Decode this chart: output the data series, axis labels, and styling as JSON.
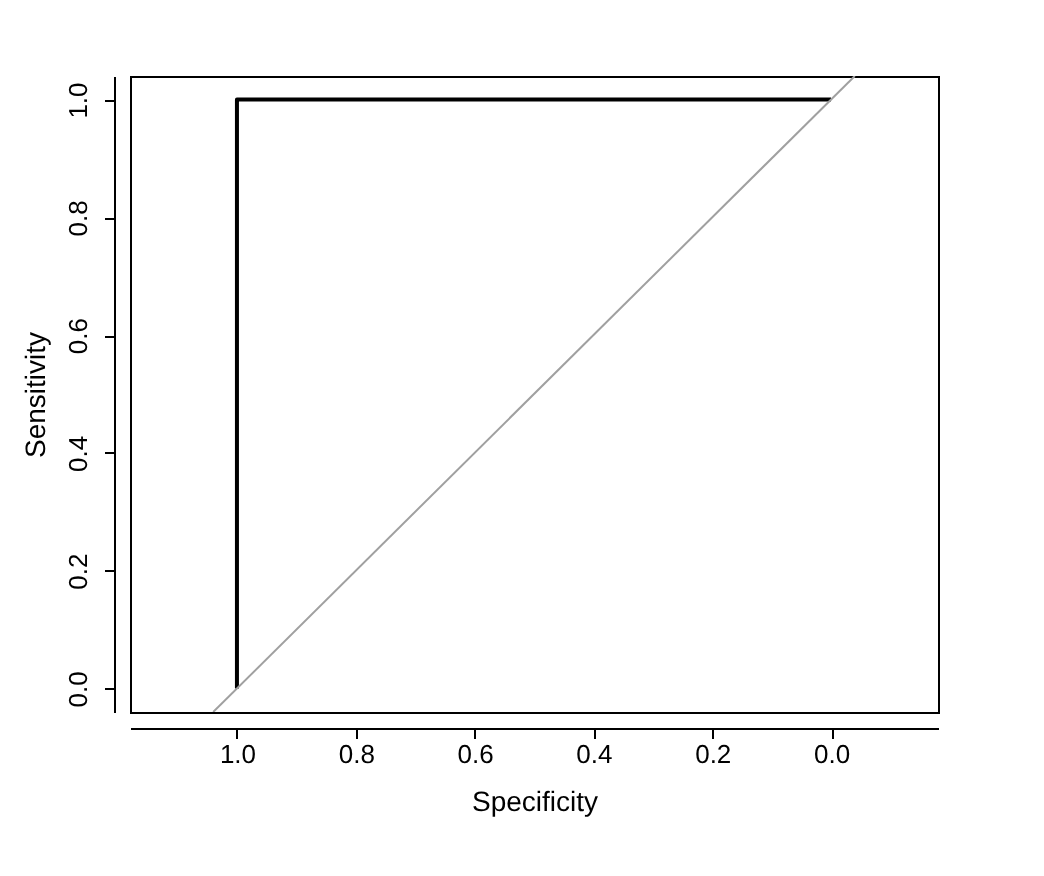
{
  "chart_data": {
    "type": "line",
    "xlabel": "Specificity",
    "ylabel": "Sensitivity",
    "xlim": [
      1.18,
      -0.18
    ],
    "ylim": [
      -0.04,
      1.04
    ],
    "xticks": [
      {
        "value": 1,
        "label": "1.0"
      },
      0.8,
      0.6,
      0.4,
      0.2,
      {
        "value": 0,
        "label": "0.0"
      }
    ],
    "yticks": [
      {
        "value": 0,
        "label": "0.0"
      },
      0.2,
      0.4,
      0.6,
      0.8,
      {
        "value": 1,
        "label": "1.0"
      }
    ],
    "grid": false,
    "marker": "none",
    "series": [
      {
        "color": "#000000",
        "x": [
          1.0,
          1.0,
          0.0
        ],
        "values": [
          0.0,
          1.0,
          1.0
        ]
      },
      {
        "color": "#a0a0a0",
        "x": [
          1.04,
          -0.04
        ],
        "values": [
          -0.04,
          1.04
        ]
      }
    ]
  }
}
